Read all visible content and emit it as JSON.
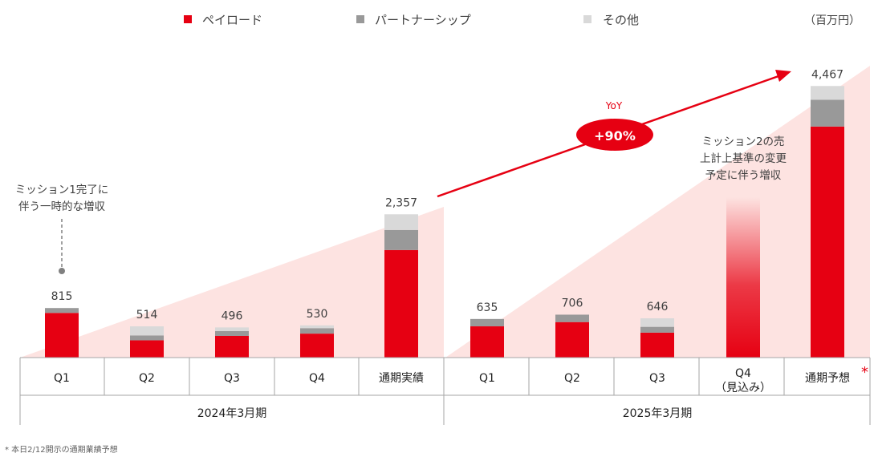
{
  "unit": "（百万円）",
  "legend": [
    {
      "label": "ペイロード",
      "color": "#e60012"
    },
    {
      "label": "パートナーシップ",
      "color": "#999999"
    },
    {
      "label": "その他",
      "color": "#d9d9d9"
    }
  ],
  "chart_data": {
    "type": "bar",
    "stacked": true,
    "categories": [
      "Q1",
      "Q2",
      "Q3",
      "Q4",
      "通期実績",
      "Q1",
      "Q2",
      "Q3",
      "Q4",
      "通期予想"
    ],
    "category_sublabels": [
      "",
      "",
      "",
      "",
      "",
      "",
      "",
      "",
      "（見込み）",
      ""
    ],
    "groups": [
      {
        "label": "2024年3月期",
        "categories": [
          0,
          1,
          2,
          3,
          4
        ]
      },
      {
        "label": "2025年3月期",
        "categories": [
          5,
          6,
          7,
          8,
          9
        ]
      }
    ],
    "totals": [
      "815",
      "514",
      "496",
      "530",
      "2,357",
      "635",
      "706",
      "646",
      "",
      "4,467"
    ],
    "series": [
      {
        "name": "ペイロード",
        "color": "#e60012",
        "values": [
          735,
          284,
          356,
          394,
          1769,
          514,
          584,
          410,
          null,
          3800
        ]
      },
      {
        "name": "パートナーシップ",
        "color": "#999999",
        "values": [
          80,
          80,
          80,
          90,
          330,
          121,
          122,
          96,
          null,
          440
        ]
      },
      {
        "name": "その他",
        "color": "#d9d9d9",
        "values": [
          0,
          150,
          60,
          46,
          258,
          0,
          0,
          140,
          null,
          227
        ]
      }
    ],
    "forecast_indicator_category": 8,
    "ylim": [
      0,
      4800
    ],
    "grid": false,
    "legend_position": "top",
    "yoy": {
      "label": "YoY",
      "value": "+90%"
    },
    "annotations": [
      {
        "id": "mission1",
        "lines": [
          "ミッション1完了に",
          "伴う一時的な増収"
        ]
      },
      {
        "id": "mission2",
        "lines": [
          "ミッション2の売",
          "上計上基準の変更",
          "予定に伴う増収"
        ]
      }
    ],
    "forecast_marker": "*",
    "footnote": "* 本日2/12開示の通期業績予想"
  }
}
